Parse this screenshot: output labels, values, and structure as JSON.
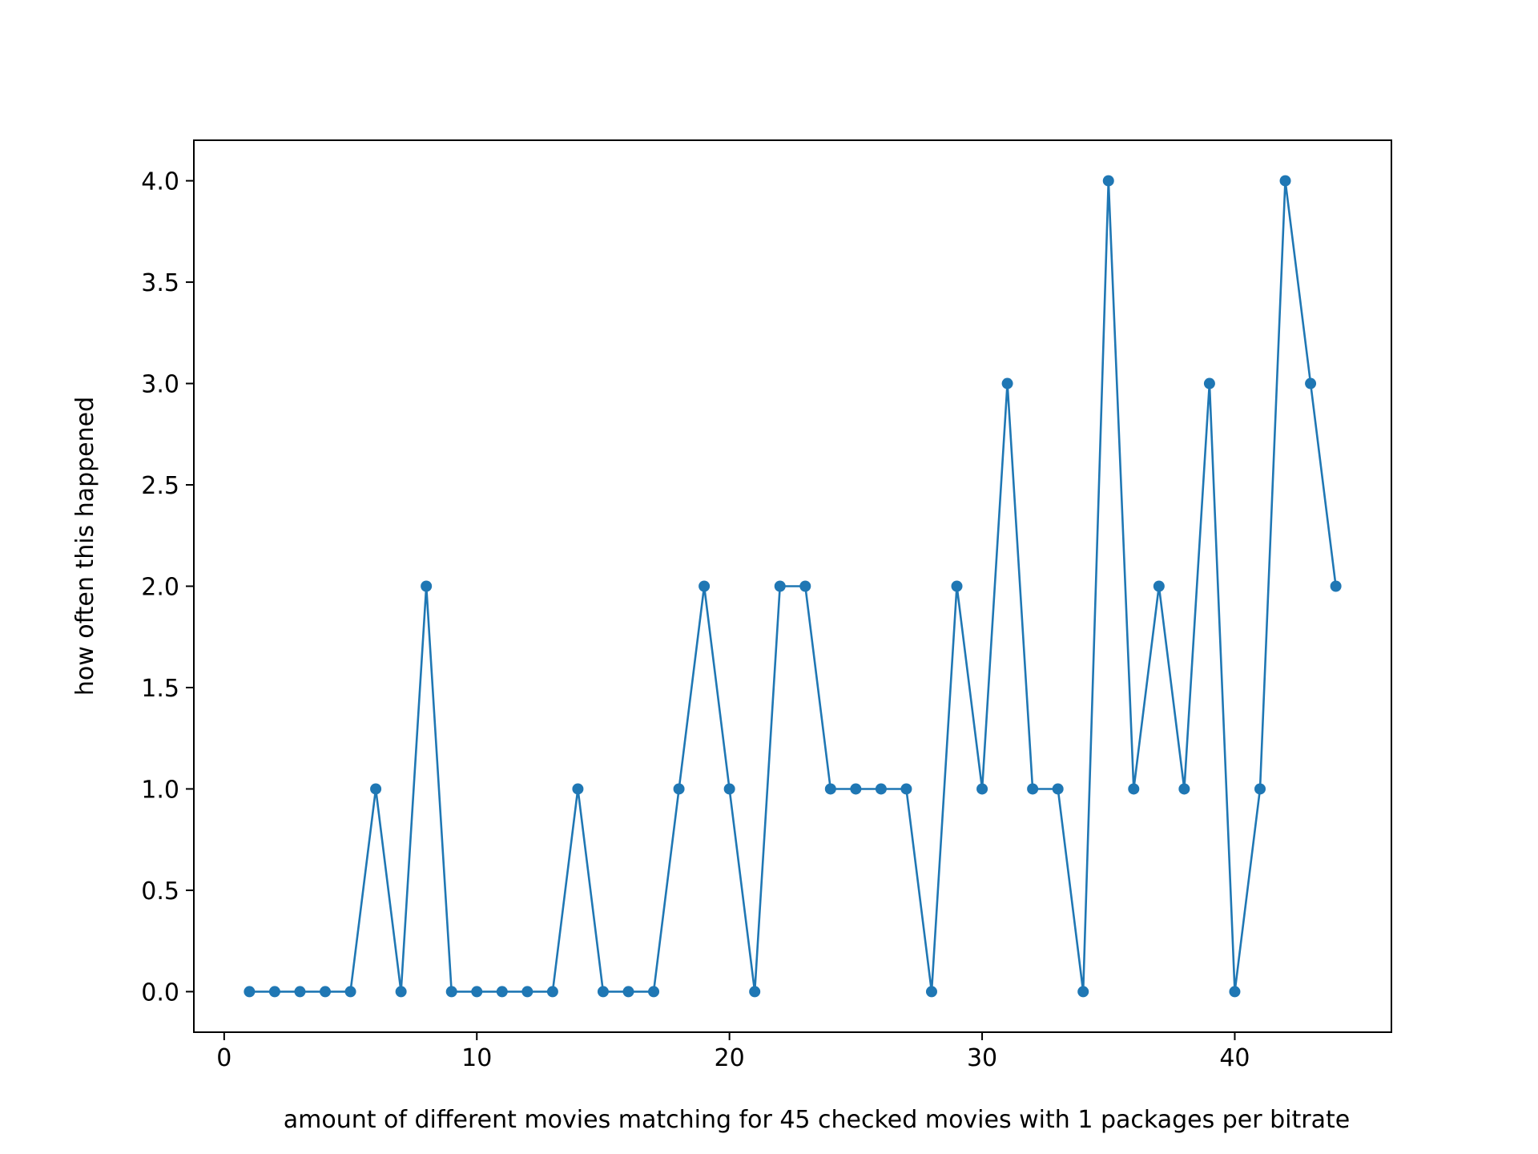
{
  "chart_data": {
    "type": "line",
    "title": "",
    "xlabel": "amount of different movies matching for 45 checked movies with 1 packages per bitrate",
    "ylabel": "how often this happened",
    "xlim": [
      -1.2,
      46.2
    ],
    "ylim": [
      -0.2,
      4.2
    ],
    "xticks": [
      0,
      10,
      20,
      30,
      40
    ],
    "xtick_labels": [
      "0",
      "10",
      "20",
      "30",
      "40"
    ],
    "yticks": [
      0.0,
      0.5,
      1.0,
      1.5,
      2.0,
      2.5,
      3.0,
      3.5,
      4.0
    ],
    "ytick_labels": [
      "0.0",
      "0.5",
      "1.0",
      "1.5",
      "2.0",
      "2.5",
      "3.0",
      "3.5",
      "4.0"
    ],
    "grid": false,
    "legend": false,
    "series": [
      {
        "color": "#1f77b4",
        "marker": "circle",
        "x": [
          1,
          2,
          3,
          4,
          5,
          6,
          7,
          8,
          9,
          10,
          11,
          12,
          13,
          14,
          15,
          16,
          17,
          18,
          19,
          20,
          21,
          22,
          23,
          24,
          25,
          26,
          27,
          28,
          29,
          30,
          31,
          32,
          33,
          34,
          35,
          36,
          37,
          38,
          39,
          40,
          41,
          42,
          43,
          44
        ],
        "y": [
          0,
          0,
          0,
          0,
          0,
          1,
          0,
          2,
          0,
          0,
          0,
          0,
          0,
          1,
          0,
          0,
          0,
          1,
          2,
          1,
          0,
          2,
          2,
          1,
          1,
          1,
          1,
          0,
          2,
          1,
          3,
          1,
          1,
          0,
          4,
          1,
          2,
          1,
          3,
          0,
          1,
          4,
          3,
          2
        ]
      }
    ]
  }
}
